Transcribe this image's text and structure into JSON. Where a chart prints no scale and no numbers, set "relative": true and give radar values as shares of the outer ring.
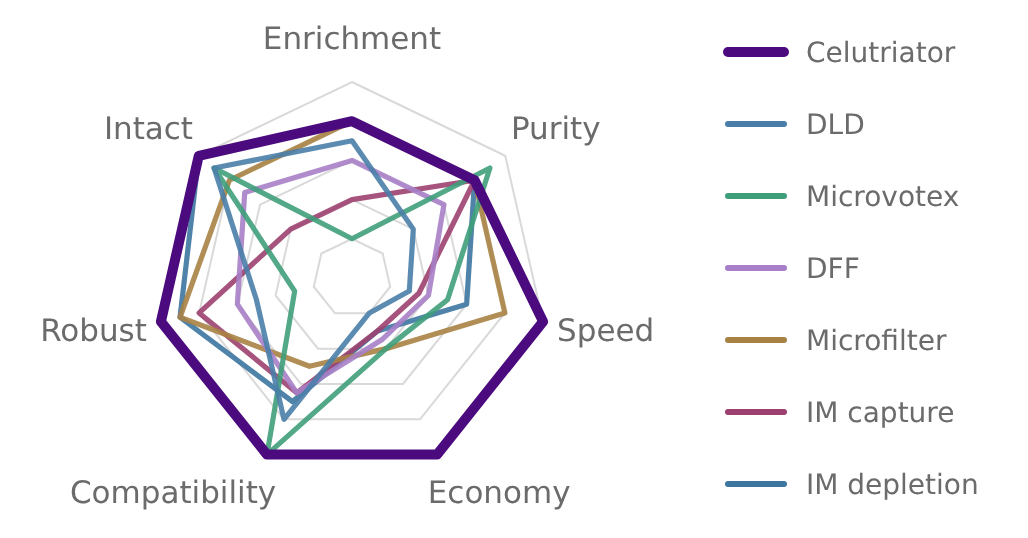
{
  "chart_data": {
    "type": "radar",
    "relative": true,
    "grid": true,
    "legend": "right",
    "categories": [
      "Enrichment",
      "Purity",
      "Speed",
      "Economy",
      "Compatibility",
      "Robust",
      "Intact"
    ],
    "series": [
      {
        "name": "Celutriator",
        "color": "#4b0a7d",
        "values": [
          0.8,
          0.8,
          1,
          1,
          1,
          1,
          1
        ]
      },
      {
        "name": "DLD",
        "color": "#4a7ea8",
        "values": [
          0.7,
          0.4,
          0.3,
          0.2,
          0.8,
          0.5,
          0.9
        ]
      },
      {
        "name": "Microvotex",
        "color": "#3f9e7a",
        "values": [
          0.2,
          0.9,
          0.5,
          0.4,
          1,
          0.3,
          0.9
        ]
      },
      {
        "name": "DFF",
        "color": "#a77fc8",
        "values": [
          0.6,
          0.6,
          0.4,
          0.35,
          0.65,
          0.6,
          0.7
        ]
      },
      {
        "name": "Microfilter",
        "color": "#a88244",
        "values": [
          0.8,
          0.8,
          0.8,
          0.4,
          0.5,
          0.9,
          0.8
        ]
      },
      {
        "name": "IM capture",
        "color": "#9c416f",
        "values": [
          0.4,
          0.8,
          0.35,
          0.3,
          0.65,
          0.8,
          0.4
        ]
      },
      {
        "name": "IM depletion",
        "color": "#3c76a0",
        "values": [
          0.8,
          0.8,
          0.6,
          0.3,
          0.7,
          0.9,
          1
        ]
      }
    ]
  }
}
